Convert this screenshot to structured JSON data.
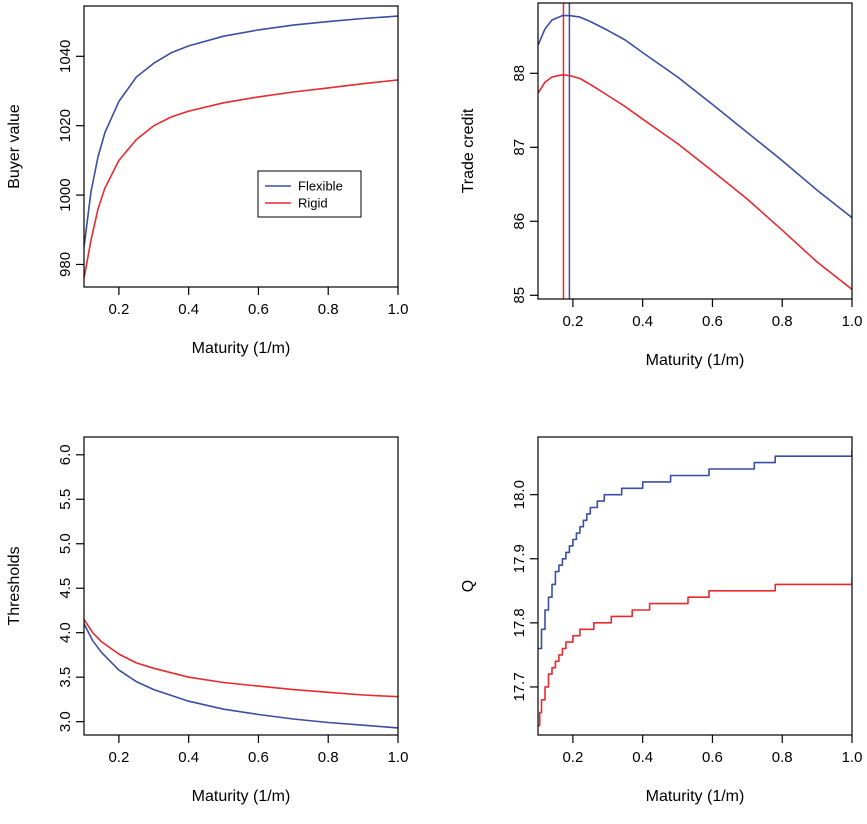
{
  "colors": {
    "flexible": "#3a4ea3",
    "rigid": "#e8292f"
  },
  "chart_data": [
    {
      "id": "buyer-value",
      "type": "line",
      "xlabel": "Maturity (1/m)",
      "ylabel": "Buyer value",
      "xlim": [
        0.1,
        1.0
      ],
      "ylim": [
        973.5,
        1054.5
      ],
      "xticks": [
        0.2,
        0.4,
        0.6,
        0.8,
        1.0
      ],
      "xtick_labels": [
        "0.2",
        "0.4",
        "0.6",
        "0.8",
        "1.0"
      ],
      "yticks": [
        980,
        1000,
        1020,
        1040
      ],
      "ytick_labels": [
        "980",
        "1000",
        "1020",
        "1040"
      ],
      "legend": {
        "position": "center-right",
        "entries": [
          "Flexible",
          "Rigid"
        ]
      },
      "series": [
        {
          "name": "Flexible",
          "color_key": "flexible",
          "x": [
            0.1,
            0.12,
            0.14,
            0.16,
            0.2,
            0.25,
            0.3,
            0.35,
            0.4,
            0.5,
            0.6,
            0.7,
            0.8,
            0.9,
            1.0
          ],
          "y": [
            985,
            1001,
            1011,
            1018,
            1027,
            1034,
            1038,
            1041,
            1043,
            1045.8,
            1047.6,
            1049,
            1050,
            1050.9,
            1051.6
          ]
        },
        {
          "name": "Rigid",
          "color_key": "rigid",
          "x": [
            0.1,
            0.12,
            0.14,
            0.16,
            0.2,
            0.25,
            0.3,
            0.35,
            0.4,
            0.5,
            0.6,
            0.7,
            0.8,
            0.9,
            1.0
          ],
          "y": [
            976,
            987,
            996,
            1002,
            1010,
            1016,
            1020,
            1022.5,
            1024.2,
            1026.6,
            1028.3,
            1029.7,
            1030.9,
            1032.1,
            1033.2
          ]
        }
      ]
    },
    {
      "id": "trade-credit",
      "type": "line",
      "xlabel": "Maturity (1/m)",
      "ylabel": "Trade credit",
      "xlim": [
        0.1,
        1.0
      ],
      "ylim": [
        84.95,
        88.95
      ],
      "xticks": [
        0.2,
        0.4,
        0.6,
        0.8,
        1.0
      ],
      "xtick_labels": [
        "0.2",
        "0.4",
        "0.6",
        "0.8",
        "1.0"
      ],
      "yticks": [
        85,
        86,
        87,
        88
      ],
      "ytick_labels": [
        "85",
        "86",
        "87",
        "88"
      ],
      "vlines": [
        {
          "x": 0.173,
          "color_key": "rigid"
        },
        {
          "x": 0.19,
          "color_key": "flexible"
        }
      ],
      "series": [
        {
          "name": "Flexible",
          "color_key": "flexible",
          "x": [
            0.1,
            0.12,
            0.14,
            0.17,
            0.19,
            0.22,
            0.25,
            0.3,
            0.35,
            0.4,
            0.5,
            0.6,
            0.7,
            0.8,
            0.9,
            1.0
          ],
          "y": [
            88.38,
            88.6,
            88.72,
            88.78,
            88.78,
            88.76,
            88.7,
            88.58,
            88.45,
            88.28,
            87.95,
            87.58,
            87.2,
            86.82,
            86.42,
            86.05
          ]
        },
        {
          "name": "Rigid",
          "color_key": "rigid",
          "x": [
            0.1,
            0.12,
            0.14,
            0.17,
            0.19,
            0.22,
            0.25,
            0.3,
            0.35,
            0.4,
            0.5,
            0.6,
            0.7,
            0.8,
            0.9,
            1.0
          ],
          "y": [
            87.73,
            87.88,
            87.95,
            87.98,
            87.97,
            87.93,
            87.85,
            87.7,
            87.55,
            87.38,
            87.05,
            86.68,
            86.3,
            85.88,
            85.45,
            85.08
          ]
        }
      ]
    },
    {
      "id": "thresholds",
      "type": "line",
      "xlabel": "Maturity (1/m)",
      "ylabel": "Thresholds",
      "xlim": [
        0.1,
        1.0
      ],
      "ylim": [
        2.85,
        6.2
      ],
      "xticks": [
        0.2,
        0.4,
        0.6,
        0.8,
        1.0
      ],
      "xtick_labels": [
        "0.2",
        "0.4",
        "0.6",
        "0.8",
        "1.0"
      ],
      "yticks": [
        3.0,
        3.5,
        4.0,
        4.5,
        5.0,
        5.5,
        6.0
      ],
      "ytick_labels": [
        "3.0",
        "3.5",
        "4.0",
        "4.5",
        "5.0",
        "5.5",
        "6.0"
      ],
      "series": [
        {
          "name": "Flexible",
          "color_key": "flexible",
          "x": [
            0.1,
            0.125,
            0.15,
            0.2,
            0.25,
            0.3,
            0.4,
            0.5,
            0.6,
            0.7,
            0.8,
            0.9,
            1.0
          ],
          "y": [
            4.1,
            3.91,
            3.78,
            3.58,
            3.45,
            3.36,
            3.23,
            3.14,
            3.08,
            3.03,
            2.99,
            2.96,
            2.93
          ]
        },
        {
          "name": "Rigid",
          "color_key": "rigid",
          "x": [
            0.1,
            0.125,
            0.15,
            0.2,
            0.25,
            0.3,
            0.4,
            0.5,
            0.6,
            0.7,
            0.8,
            0.9,
            1.0
          ],
          "y": [
            4.15,
            4.0,
            3.9,
            3.76,
            3.66,
            3.6,
            3.5,
            3.44,
            3.4,
            3.36,
            3.33,
            3.3,
            3.28
          ]
        }
      ]
    },
    {
      "id": "q",
      "type": "line",
      "xlabel": "Maturity (1/m)",
      "ylabel": "Q",
      "xlim": [
        0.1,
        1.0
      ],
      "ylim": [
        17.625,
        18.09
      ],
      "xticks": [
        0.2,
        0.4,
        0.6,
        0.8,
        1.0
      ],
      "xtick_labels": [
        "0.2",
        "0.4",
        "0.6",
        "0.8",
        "1.0"
      ],
      "yticks": [
        17.7,
        17.8,
        17.9,
        18.0
      ],
      "ytick_labels": [
        "17.7",
        "17.8",
        "17.9",
        "18.0"
      ],
      "series": [
        {
          "name": "Flexible",
          "color_key": "flexible",
          "step": true,
          "x": [
            0.1,
            0.11,
            0.12,
            0.13,
            0.14,
            0.15,
            0.16,
            0.17,
            0.18,
            0.19,
            0.2,
            0.21,
            0.22,
            0.23,
            0.24,
            0.25,
            0.27,
            0.29,
            0.31,
            0.34,
            0.37,
            0.4,
            0.44,
            0.48,
            0.53,
            0.59,
            0.66,
            0.72,
            0.78,
            0.9,
            1.0
          ],
          "y": [
            17.76,
            17.79,
            17.82,
            17.84,
            17.86,
            17.88,
            17.89,
            17.9,
            17.91,
            17.92,
            17.93,
            17.94,
            17.95,
            17.96,
            17.97,
            17.98,
            17.99,
            18.0,
            18.0,
            18.01,
            18.01,
            18.02,
            18.02,
            18.03,
            18.03,
            18.04,
            18.04,
            18.05,
            18.06,
            18.06,
            18.07
          ]
        },
        {
          "name": "Rigid",
          "color_key": "rigid",
          "step": true,
          "x": [
            0.1,
            0.105,
            0.11,
            0.12,
            0.13,
            0.14,
            0.15,
            0.16,
            0.17,
            0.18,
            0.2,
            0.22,
            0.24,
            0.26,
            0.28,
            0.31,
            0.34,
            0.37,
            0.42,
            0.47,
            0.53,
            0.59,
            0.66,
            0.72,
            0.78,
            0.9,
            1.0
          ],
          "y": [
            17.64,
            17.66,
            17.68,
            17.7,
            17.72,
            17.73,
            17.74,
            17.75,
            17.76,
            17.77,
            17.78,
            17.79,
            17.79,
            17.8,
            17.8,
            17.81,
            17.81,
            17.82,
            17.83,
            17.83,
            17.84,
            17.85,
            17.85,
            17.85,
            17.86,
            17.86,
            17.87
          ]
        }
      ]
    }
  ]
}
